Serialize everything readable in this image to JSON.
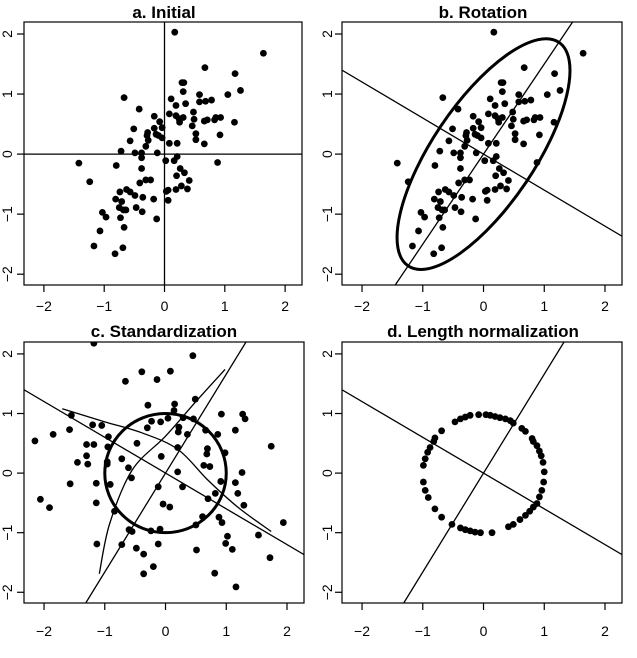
{
  "chart_data": [
    {
      "type": "scatter",
      "title": "a. Initial",
      "xlim": [
        -2.33,
        2.28
      ],
      "ylim": [
        -2.18,
        2.2
      ],
      "xticks": [
        -2,
        -1,
        0,
        1,
        2
      ],
      "yticks": [
        -2,
        -1,
        0,
        1,
        2
      ],
      "xtick_labels": [
        "−2",
        "−1",
        "0",
        "1",
        "2"
      ],
      "ytick_labels": [
        "−2",
        "−1",
        "0",
        "1",
        "2"
      ],
      "lines": [
        {
          "type": "vline",
          "x": 0
        },
        {
          "type": "hline",
          "y": 0
        }
      ],
      "points": [
        [
          0.17,
          2.03
        ],
        [
          1.64,
          1.68
        ],
        [
          0.67,
          1.44
        ],
        [
          1.17,
          1.34
        ],
        [
          1.26,
          1.06
        ],
        [
          1.05,
          0.99
        ],
        [
          0.29,
          1.19
        ],
        [
          0.32,
          1.19
        ],
        [
          0.31,
          1.04
        ],
        [
          0.58,
          0.99
        ],
        [
          0.68,
          0.88
        ],
        [
          0.58,
          0.87
        ],
        [
          0.78,
          0.9
        ],
        [
          0.11,
          0.92
        ],
        [
          0.19,
          0.81
        ],
        [
          0.35,
          0.84
        ],
        [
          -0.67,
          0.94
        ],
        [
          -0.42,
          0.75
        ],
        [
          -0.17,
          0.63
        ],
        [
          0.08,
          0.67
        ],
        [
          0.19,
          0.64
        ],
        [
          0.24,
          0.59
        ],
        [
          0.31,
          0.61
        ],
        [
          0.25,
          0.53
        ],
        [
          0.48,
          0.7
        ],
        [
          0.49,
          0.58
        ],
        [
          0.66,
          0.55
        ],
        [
          0.71,
          0.57
        ],
        [
          0.83,
          0.57
        ],
        [
          0.93,
          0.61
        ],
        [
          0.85,
          0.61
        ],
        [
          1.16,
          0.53
        ],
        [
          0.46,
          0.47
        ],
        [
          0.52,
          0.34
        ],
        [
          0.52,
          0.24
        ],
        [
          0.66,
          0.17
        ],
        [
          0.92,
          0.32
        ],
        [
          -0.08,
          0.54
        ],
        [
          -0.17,
          0.43
        ],
        [
          -0.04,
          0.44
        ],
        [
          -0.28,
          0.36
        ],
        [
          -0.29,
          0.31
        ],
        [
          -0.14,
          0.33
        ],
        [
          -0.1,
          0.31
        ],
        [
          -0.04,
          0.27
        ],
        [
          -0.51,
          0.42
        ],
        [
          -0.57,
          0.22
        ],
        [
          -0.31,
          0.13
        ],
        [
          -0.27,
          0.23
        ],
        [
          -0.72,
          0.05
        ],
        [
          -0.49,
          0.02
        ],
        [
          -0.38,
          0.02
        ],
        [
          -0.38,
          -0.06
        ],
        [
          -0.12,
          0.02
        ],
        [
          0.08,
          0.18
        ],
        [
          0.21,
          0.18
        ],
        [
          0.02,
          -0.11
        ],
        [
          0.16,
          -0.11
        ],
        [
          0.21,
          -0.04
        ],
        [
          0.88,
          -0.14
        ],
        [
          -1.42,
          -0.15
        ],
        [
          -0.8,
          -0.19
        ],
        [
          -0.38,
          -0.24
        ],
        [
          0.26,
          -0.24
        ],
        [
          0.33,
          -0.31
        ],
        [
          0.2,
          -0.36
        ],
        [
          0.41,
          -0.44
        ],
        [
          0.28,
          -0.53
        ],
        [
          0.38,
          -0.58
        ],
        [
          0.19,
          -0.59
        ],
        [
          0.06,
          -0.6
        ],
        [
          0.03,
          -0.62
        ],
        [
          0.06,
          -0.77
        ],
        [
          -1.24,
          -0.46
        ],
        [
          -0.41,
          -0.48
        ],
        [
          -0.31,
          -0.43
        ],
        [
          -0.23,
          -0.43
        ],
        [
          -0.74,
          -0.63
        ],
        [
          -0.63,
          -0.59
        ],
        [
          -0.57,
          -0.63
        ],
        [
          -0.49,
          -0.69
        ],
        [
          -0.36,
          -0.72
        ],
        [
          -0.18,
          -0.75
        ],
        [
          -0.81,
          -0.75
        ],
        [
          -0.71,
          -0.79
        ],
        [
          -0.75,
          -0.89
        ],
        [
          -0.68,
          -0.93
        ],
        [
          -0.64,
          -0.93
        ],
        [
          -0.47,
          -0.89
        ],
        [
          -0.37,
          -0.96
        ],
        [
          -1.03,
          -0.97
        ],
        [
          -0.97,
          -1.05
        ],
        [
          -0.73,
          -1.06
        ],
        [
          -0.13,
          -1.08
        ],
        [
          -0.67,
          -1.22
        ],
        [
          -1.07,
          -1.28
        ],
        [
          -1.17,
          -1.53
        ],
        [
          -0.69,
          -1.56
        ],
        [
          -0.82,
          -1.66
        ]
      ]
    },
    {
      "type": "scatter",
      "title": "b. Rotation",
      "xlim": [
        -2.33,
        2.28
      ],
      "ylim": [
        -2.18,
        2.2
      ],
      "xticks": [
        -2,
        -1,
        0,
        1,
        2
      ],
      "yticks": [
        -2,
        -1,
        0,
        1,
        2
      ],
      "xtick_labels": [
        "−2",
        "−1",
        "0",
        "1",
        "2"
      ],
      "ytick_labels": [
        "−2",
        "−1",
        "0",
        "1",
        "2"
      ],
      "lines": [
        {
          "type": "slope",
          "slope": 1.5
        },
        {
          "type": "slope",
          "slope": -0.6
        }
      ],
      "ellipse": {
        "center": [
          0,
          0
        ],
        "semi_major": 2.22,
        "semi_minor": 0.85,
        "angle_deg": 56
      },
      "points": "same as a"
    },
    {
      "type": "scatter",
      "title": "c. Standardization",
      "xlim": [
        -2.33,
        2.28
      ],
      "ylim": [
        -2.18,
        2.2
      ],
      "xticks": [
        -2,
        -1,
        0,
        1,
        2
      ],
      "yticks": [
        -2,
        -1,
        0,
        1,
        2
      ],
      "xtick_labels": [
        "−2",
        "−1",
        "0",
        "1",
        "2"
      ],
      "ytick_labels": [
        "−2",
        "−1",
        "0",
        "1",
        "2"
      ],
      "lines": [
        {
          "type": "slope",
          "slope": 1.66
        },
        {
          "type": "slope",
          "slope": -0.6
        }
      ],
      "circle": {
        "center": [
          0,
          0
        ],
        "radius": 1
      },
      "curves": [
        [
          [
            -1.7,
            1.08
          ],
          [
            -1.0,
            0.86
          ],
          [
            -0.4,
            0.68
          ],
          [
            0.2,
            0.4
          ],
          [
            0.7,
            -0.12
          ],
          [
            1.2,
            -0.58
          ],
          [
            1.74,
            -0.98
          ]
        ],
        [
          [
            -1.09,
            -1.69
          ],
          [
            -0.92,
            -0.85
          ],
          [
            -0.55,
            0.05
          ],
          [
            0.0,
            0.62
          ],
          [
            0.5,
            1.2
          ],
          [
            0.98,
            1.74
          ]
        ]
      ],
      "points": [
        [
          0.45,
          1.97
        ],
        [
          -0.39,
          1.7
        ],
        [
          0.08,
          1.71
        ],
        [
          -0.66,
          1.54
        ],
        [
          -0.14,
          1.57
        ],
        [
          -1.18,
          2.18
        ],
        [
          -0.29,
          1.14
        ],
        [
          0.15,
          1.16
        ],
        [
          0.14,
          1.05
        ],
        [
          0.49,
          1.24
        ],
        [
          0.92,
          0.99
        ],
        [
          1.27,
          0.99
        ],
        [
          1.31,
          0.91
        ],
        [
          -1.55,
          0.97
        ],
        [
          -1.2,
          0.81
        ],
        [
          -1.05,
          0.8
        ],
        [
          -1.58,
          0.73
        ],
        [
          -1.85,
          0.65
        ],
        [
          -2.15,
          0.54
        ],
        [
          -0.23,
          0.87
        ],
        [
          -0.08,
          0.86
        ],
        [
          0.04,
          0.92
        ],
        [
          -0.3,
          0.76
        ],
        [
          0.22,
          0.77
        ],
        [
          0.21,
          0.69
        ],
        [
          0.29,
          0.93
        ],
        [
          0.46,
          0.91
        ],
        [
          0.36,
          0.65
        ],
        [
          0.66,
          0.72
        ],
        [
          0.86,
          0.65
        ],
        [
          1.15,
          0.72
        ],
        [
          -0.94,
          0.61
        ],
        [
          -1.3,
          0.48
        ],
        [
          -1.18,
          0.48
        ],
        [
          -0.95,
          0.44
        ],
        [
          -0.47,
          0.5
        ],
        [
          0.2,
          0.43
        ],
        [
          0.69,
          0.41
        ],
        [
          0.68,
          0.32
        ],
        [
          0.98,
          0.34
        ],
        [
          1.74,
          0.45
        ],
        [
          -1.3,
          0.29
        ],
        [
          -1.28,
          0.15
        ],
        [
          -1.45,
          0.18
        ],
        [
          -0.96,
          0.19
        ],
        [
          -0.96,
          0.15
        ],
        [
          -0.72,
          0.24
        ],
        [
          -0.61,
          0.09
        ],
        [
          -0.56,
          -0.08
        ],
        [
          -0.07,
          0.28
        ],
        [
          0.2,
          0.02
        ],
        [
          0.63,
          0.13
        ],
        [
          0.73,
          0.11
        ],
        [
          1.26,
          0.01
        ],
        [
          -1.57,
          -0.18
        ],
        [
          -1.14,
          -0.17
        ],
        [
          -0.91,
          -0.19
        ],
        [
          -0.12,
          -0.23
        ],
        [
          0.28,
          -0.23
        ],
        [
          0.91,
          -0.14
        ],
        [
          1.15,
          -0.16
        ],
        [
          0.82,
          -0.34
        ],
        [
          0.7,
          -0.43
        ],
        [
          1.19,
          -0.34
        ],
        [
          1.29,
          -0.54
        ],
        [
          -2.06,
          -0.44
        ],
        [
          -1.91,
          -0.58
        ],
        [
          -1.14,
          -0.5
        ],
        [
          -0.84,
          -0.64
        ],
        [
          -0.04,
          -0.52
        ],
        [
          0.07,
          -0.57
        ],
        [
          0.61,
          -0.73
        ],
        [
          0.5,
          -0.87
        ],
        [
          0.88,
          -0.74
        ],
        [
          0.93,
          -0.83
        ],
        [
          1.94,
          -0.83
        ],
        [
          -0.6,
          -0.95
        ],
        [
          -0.55,
          -0.98
        ],
        [
          -0.24,
          -0.97
        ],
        [
          -0.09,
          -0.94
        ],
        [
          -1.13,
          -1.19
        ],
        [
          -0.72,
          -1.2
        ],
        [
          -0.48,
          -1.26
        ],
        [
          -0.36,
          -1.36
        ],
        [
          -0.12,
          -1.19
        ],
        [
          0.51,
          -1.29
        ],
        [
          1.02,
          -1.06
        ],
        [
          0.99,
          -1.18
        ],
        [
          1.1,
          -1.28
        ],
        [
          1.53,
          -1.04
        ],
        [
          1.72,
          -1.42
        ],
        [
          -0.2,
          -1.57
        ],
        [
          -0.36,
          -1.69
        ],
        [
          0.81,
          -1.68
        ],
        [
          1.16,
          -1.91
        ]
      ]
    },
    {
      "type": "scatter",
      "title": "d. Length normalization",
      "xlim": [
        -2.33,
        2.28
      ],
      "ylim": [
        -2.18,
        2.2
      ],
      "xticks": [
        -2,
        -1,
        0,
        1,
        2
      ],
      "yticks": [
        -2,
        -1,
        0,
        1,
        2
      ],
      "xtick_labels": [
        "−2",
        "−1",
        "0",
        "1",
        "2"
      ],
      "ytick_labels": [
        "−2",
        "−1",
        "0",
        "1",
        "2"
      ],
      "lines": [
        {
          "type": "slope",
          "slope": 1.66
        },
        {
          "type": "slope",
          "slope": -0.6
        }
      ],
      "points": [
        [
          -0.47,
          0.86
        ],
        [
          -0.38,
          0.91
        ],
        [
          -0.3,
          0.94
        ],
        [
          -0.22,
          0.97
        ],
        [
          -0.08,
          0.98
        ],
        [
          0.04,
          0.98
        ],
        [
          0.11,
          0.97
        ],
        [
          0.19,
          0.95
        ],
        [
          0.27,
          0.93
        ],
        [
          0.36,
          0.91
        ],
        [
          0.44,
          0.88
        ],
        [
          0.49,
          0.84
        ],
        [
          0.63,
          0.75
        ],
        [
          0.69,
          0.7
        ],
        [
          0.8,
          0.58
        ],
        [
          0.82,
          0.53
        ],
        [
          0.88,
          0.46
        ],
        [
          0.92,
          0.37
        ],
        [
          0.95,
          0.29
        ],
        [
          0.98,
          0.18
        ],
        [
          1.0,
          0.02
        ],
        [
          0.99,
          -0.15
        ],
        [
          0.96,
          -0.29
        ],
        [
          0.92,
          -0.4
        ],
        [
          0.88,
          -0.51
        ],
        [
          0.82,
          -0.57
        ],
        [
          0.76,
          -0.64
        ],
        [
          0.69,
          -0.71
        ],
        [
          0.6,
          -0.78
        ],
        [
          0.49,
          -0.86
        ],
        [
          0.41,
          -0.9
        ],
        [
          0.14,
          -1.0
        ],
        [
          -0.05,
          -1.0
        ],
        [
          -0.14,
          -0.99
        ],
        [
          -0.22,
          -0.97
        ],
        [
          -0.3,
          -0.95
        ],
        [
          -0.38,
          -0.92
        ],
        [
          -0.52,
          -0.86
        ],
        [
          -0.69,
          -0.74
        ],
        [
          -0.8,
          -0.6
        ],
        [
          -0.91,
          -0.41
        ],
        [
          -0.96,
          -0.29
        ],
        [
          -0.99,
          -0.15
        ],
        [
          -0.99,
          0.13
        ],
        [
          -0.96,
          0.24
        ],
        [
          -0.92,
          0.35
        ],
        [
          -0.88,
          0.43
        ],
        [
          -0.82,
          0.53
        ],
        [
          -0.8,
          0.59
        ],
        [
          -0.69,
          0.71
        ]
      ]
    }
  ]
}
